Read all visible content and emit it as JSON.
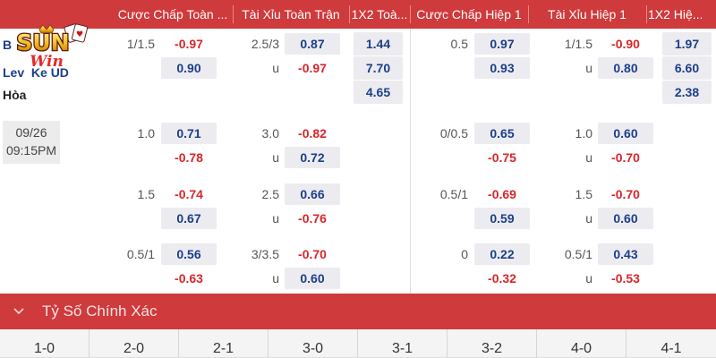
{
  "header": {
    "col_ah_full": "Cược Chấp Toàn ...",
    "col_ou_full": "Tài Xỉu Toàn Trận",
    "col_1x2_full": "1X2 Toà...",
    "col_ah_half": "Cược Chấp Hiệp 1",
    "col_ou_half": "Tài Xỉu Hiệp 1",
    "col_1x2_half": "1X2 Hiệ..."
  },
  "logo": {
    "top": "SUN",
    "bottom": "Win"
  },
  "match": {
    "home_team": "B",
    "away_team": "Lev  Ke UD",
    "draw_label": "Hòa",
    "date": "09/26",
    "time": "09:15PM"
  },
  "rows": [
    {
      "ah_full": {
        "line": "1/1.5",
        "top": "-0.97",
        "bottom": "0.90"
      },
      "ou_full": {
        "line": "2.5/3",
        "top": "0.87",
        "under": "u",
        "bottom": "-0.97"
      },
      "x12_full": [
        "1.44",
        "7.70",
        "4.65"
      ],
      "ah_half": {
        "line": "0.5",
        "top": "0.97",
        "bottom": "0.93"
      },
      "ou_half": {
        "line": "1/1.5",
        "top": "-0.90",
        "under": "u",
        "bottom": "0.80"
      },
      "x12_half": [
        "1.97",
        "6.60",
        "2.38"
      ]
    },
    {
      "ah_full": {
        "line": "1.0",
        "top": "0.71",
        "bottom": "-0.78"
      },
      "ou_full": {
        "line": "3.0",
        "top": "-0.82",
        "under": "u",
        "bottom": "0.72"
      },
      "ah_half": {
        "line": "0/0.5",
        "top": "0.65",
        "bottom": "-0.75"
      },
      "ou_half": {
        "line": "1.0",
        "top": "0.60",
        "under": "u",
        "bottom": "-0.70"
      }
    },
    {
      "ah_full": {
        "line": "1.5",
        "top": "-0.74",
        "bottom": "0.67"
      },
      "ou_full": {
        "line": "2.5",
        "top": "0.66",
        "under": "u",
        "bottom": "-0.76"
      },
      "ah_half": {
        "line": "0.5/1",
        "top": "-0.69",
        "bottom": "0.59"
      },
      "ou_half": {
        "line": "1.5",
        "top": "-0.70",
        "under": "u",
        "bottom": "0.60"
      }
    },
    {
      "ah_full": {
        "line": "0.5/1",
        "top": "0.56",
        "bottom": "-0.63"
      },
      "ou_full": {
        "line": "3/3.5",
        "top": "-0.70",
        "under": "u",
        "bottom": "0.60"
      },
      "ah_half": {
        "line": "0",
        "top": "0.22",
        "bottom": "-0.32"
      },
      "ou_half": {
        "line": "0.5/1",
        "top": "0.43",
        "under": "u",
        "bottom": "-0.53"
      }
    }
  ],
  "correct_score": {
    "title": "Tỷ Số Chính Xác",
    "scores": [
      "1-0",
      "2-0",
      "2-1",
      "3-0",
      "3-1",
      "3-2",
      "4-0",
      "4-1"
    ]
  },
  "colors": {
    "header_bg": "#cf3a3c",
    "positive_odds": "#1d3e8a",
    "negative_odds": "#d8262a",
    "cell_bg": "#ececf0"
  }
}
